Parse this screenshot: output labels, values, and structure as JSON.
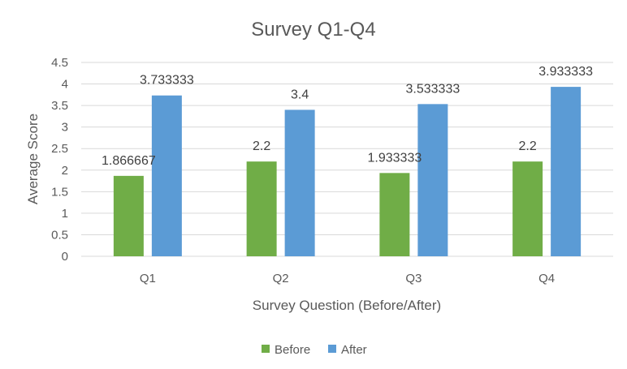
{
  "chart_data": {
    "type": "bar",
    "title": "Survey Q1-Q4",
    "xlabel": "Survey Question (Before/After)",
    "ylabel": "Average Score",
    "categories": [
      "Q1",
      "Q2",
      "Q3",
      "Q4"
    ],
    "series": [
      {
        "name": "Before",
        "color": "#70ad47",
        "values": [
          1.866667,
          2.2,
          1.933333,
          2.2
        ],
        "labels": [
          "1.866667",
          "2.2",
          "1.933333",
          "2.2"
        ]
      },
      {
        "name": "After",
        "color": "#5b9bd5",
        "values": [
          3.733333,
          3.4,
          3.533333,
          3.933333
        ],
        "labels": [
          "3.733333",
          "3.4",
          "3.533333",
          "3.933333"
        ]
      }
    ],
    "ylim": [
      0,
      4.5
    ],
    "yticks": [
      "0",
      "0.5",
      "1",
      "1.5",
      "2",
      "2.5",
      "3",
      "3.5",
      "4",
      "4.5"
    ],
    "grid": true,
    "legend_position": "bottom"
  }
}
